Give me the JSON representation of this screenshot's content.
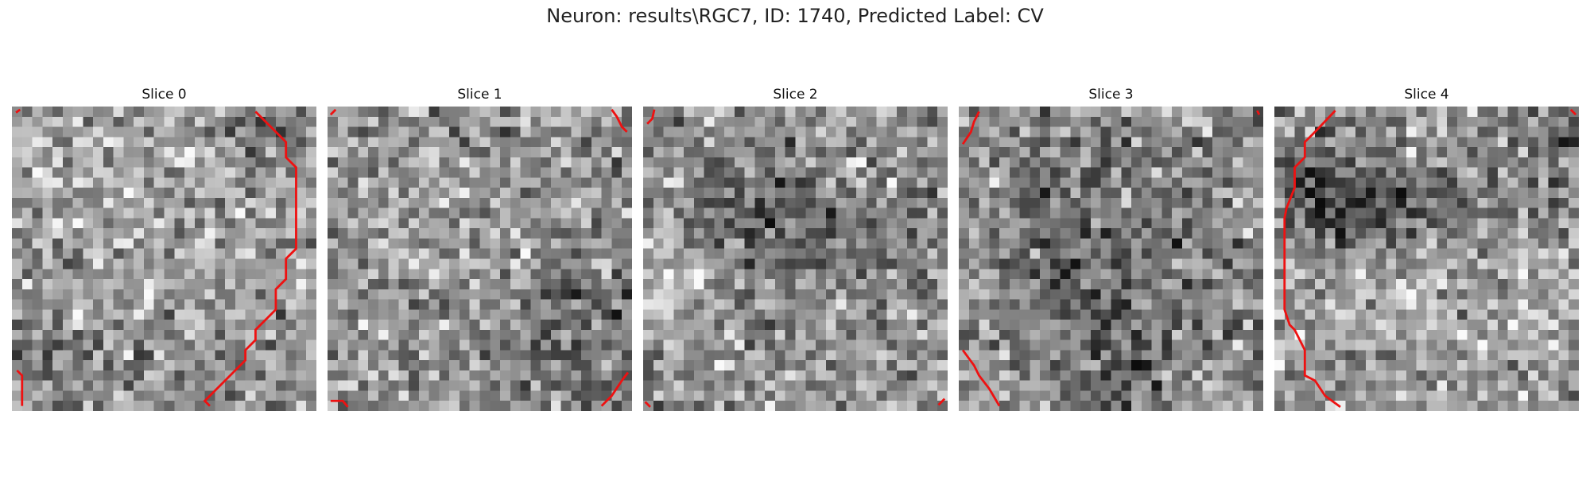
{
  "figure": {
    "title": "Neuron: results\\RGC7, ID: 1740, Predicted Label: CV"
  },
  "panels": [
    {
      "title": "Slice 0"
    },
    {
      "title": "Slice 1"
    },
    {
      "title": "Slice 2"
    },
    {
      "title": "Slice 3"
    },
    {
      "title": "Slice 4"
    }
  ],
  "colors": {
    "contour": "#ee1111",
    "background": "#ffffff"
  }
}
